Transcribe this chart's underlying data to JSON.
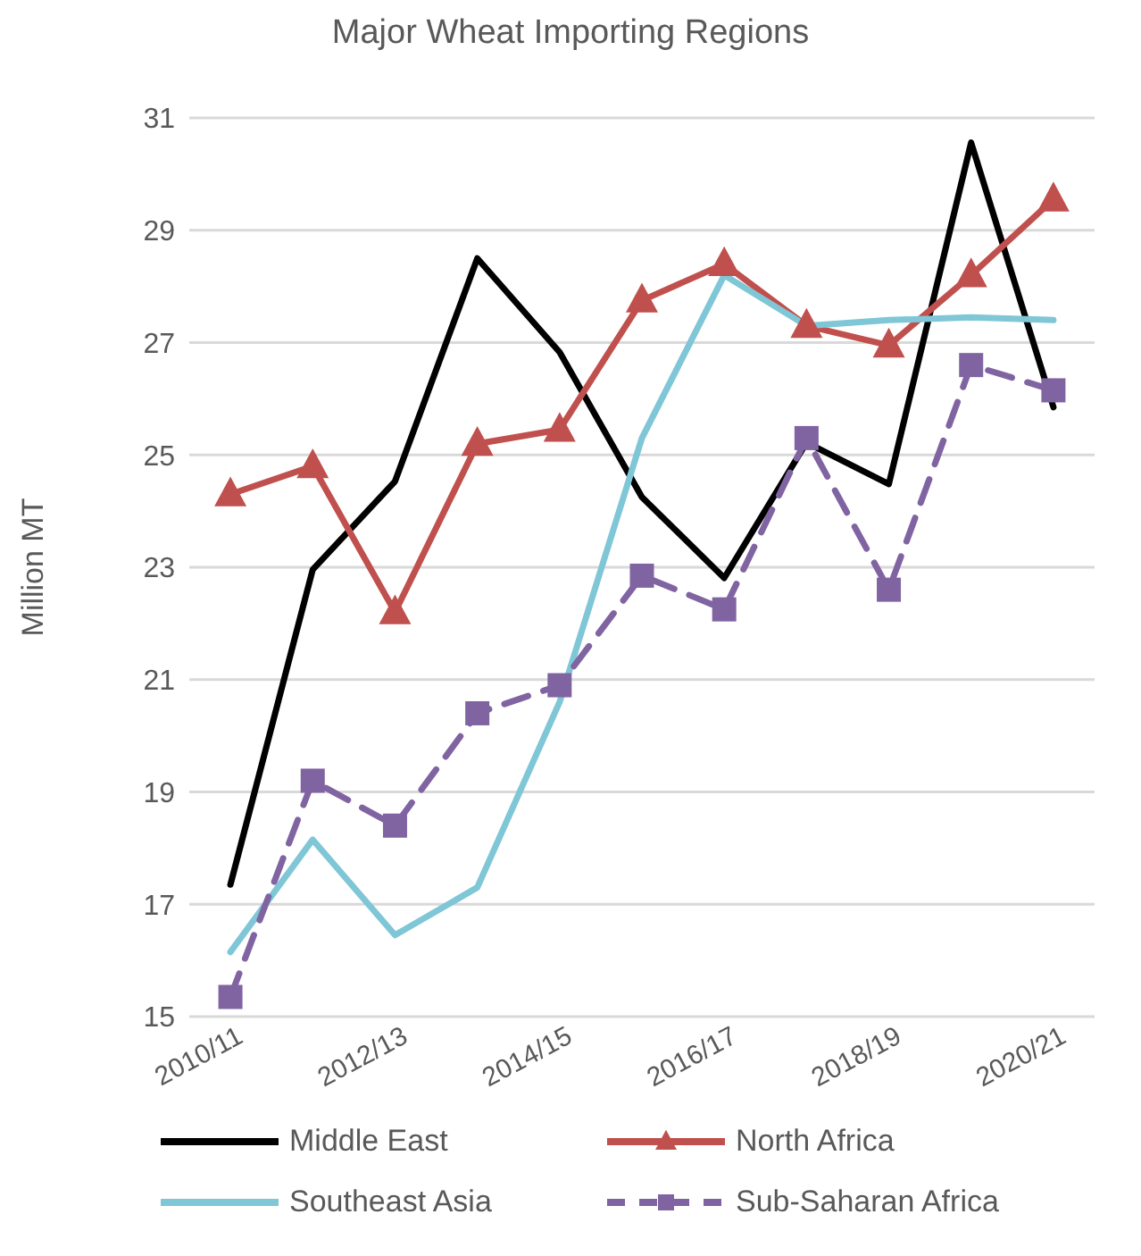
{
  "chart_data": {
    "type": "line",
    "title": "Major Wheat Importing Regions",
    "ylabel": "Million MT",
    "categories": [
      "2010/11",
      null,
      "2012/13",
      null,
      "2014/15",
      null,
      "2016/17",
      null,
      "2018/19",
      null,
      "2020/21"
    ],
    "series": [
      {
        "name": "Middle East",
        "color": "#000000",
        "marker": "none",
        "line_style": "solid",
        "values": [
          17.35,
          22.96,
          24.53,
          28.5,
          26.83,
          24.25,
          22.81,
          25.22,
          24.48,
          30.56,
          25.85
        ]
      },
      {
        "name": "North Africa",
        "color": "#c0504d",
        "marker": "triangle",
        "line_style": "solid",
        "values": [
          24.3,
          24.8,
          22.2,
          25.2,
          25.45,
          27.75,
          28.4,
          27.3,
          26.95,
          28.2,
          29.55
        ]
      },
      {
        "name": "Southeast Asia",
        "color": "#7fc6d6",
        "marker": "none",
        "line_style": "solid",
        "values": [
          16.15,
          18.15,
          16.45,
          17.3,
          20.6,
          25.3,
          28.2,
          27.3,
          27.4,
          27.45,
          27.4
        ]
      },
      {
        "name": "Sub-Saharan Africa",
        "color": "#8064a2",
        "marker": "square",
        "line_style": "dashed",
        "values": [
          15.35,
          19.2,
          18.4,
          20.4,
          20.9,
          22.85,
          22.25,
          25.3,
          22.6,
          26.6,
          26.15
        ]
      }
    ],
    "ylim": [
      15,
      31
    ],
    "yticks": [
      15,
      17,
      19,
      21,
      23,
      25,
      27,
      29,
      31
    ],
    "grid": "y",
    "legend": "bottom"
  }
}
